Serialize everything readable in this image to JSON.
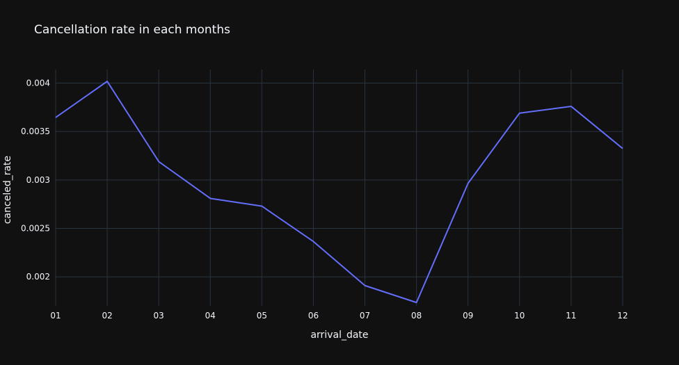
{
  "chart_data": {
    "type": "line",
    "title": "Cancellation rate in each months",
    "xlabel": "arrival_date",
    "ylabel": "canceled_rate",
    "categories": [
      "01",
      "02",
      "03",
      "04",
      "05",
      "06",
      "07",
      "08",
      "09",
      "10",
      "11",
      "12"
    ],
    "series": [
      {
        "values": [
          0.003645,
          0.004018,
          0.00319,
          0.00281,
          0.00273,
          0.002365,
          0.00191,
          0.001735,
          0.002965,
          0.00369,
          0.00376,
          0.003325
        ]
      }
    ],
    "yticks": [
      0.002,
      0.0025,
      0.003,
      0.0035,
      0.004
    ],
    "ytick_labels": [
      "0.002",
      "0.0025",
      "0.003",
      "0.0035",
      "0.004"
    ],
    "ylim": [
      0.0017,
      0.00414
    ],
    "grid": true,
    "colors": {
      "background": "#111111",
      "grid": "#283442",
      "line": "#636efa",
      "text": "#f2f5fa"
    }
  }
}
